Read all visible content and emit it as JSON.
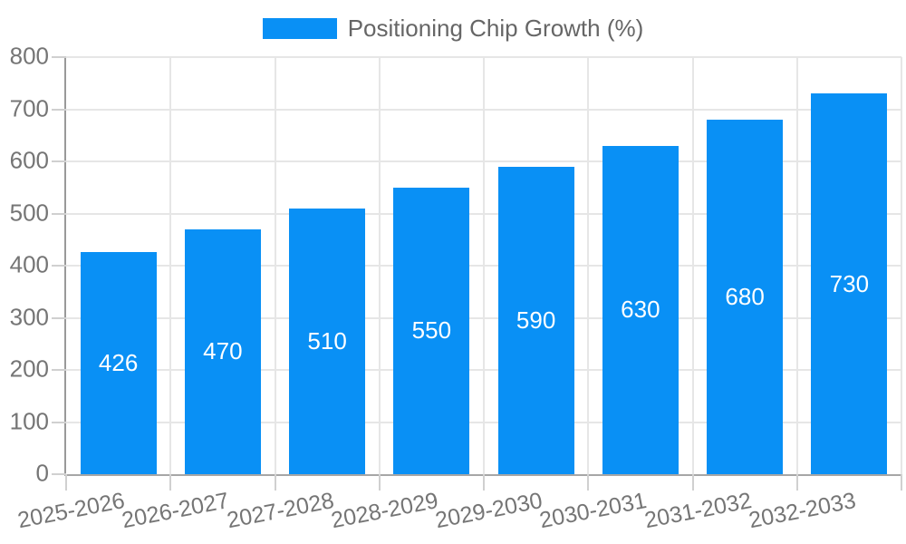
{
  "chart_data": {
    "type": "bar",
    "title": "",
    "categories": [
      "2025-2026",
      "2026-2027",
      "2027-2028",
      "2028-2029",
      "2029-2030",
      "2030-2031",
      "2031-2032",
      "2032-2033"
    ],
    "series": [
      {
        "name": "Positioning Chip Growth (%)",
        "values": [
          426,
          470,
          510,
          550,
          590,
          630,
          680,
          730
        ]
      }
    ],
    "xlabel": "",
    "ylabel": "",
    "ylim": [
      0,
      800
    ],
    "ytick_step": 100,
    "grid": true,
    "legend_position": "top",
    "value_labels": "inside-center",
    "colors": {
      "bar": "#0990f5",
      "value_label": "#ffffff",
      "axis_text": "#757575",
      "legend_text": "#666666",
      "grid_line": "#e6e6e6",
      "axis_line": "#999999",
      "tick_mark": "#d0d0d0",
      "background": "#ffffff"
    }
  }
}
